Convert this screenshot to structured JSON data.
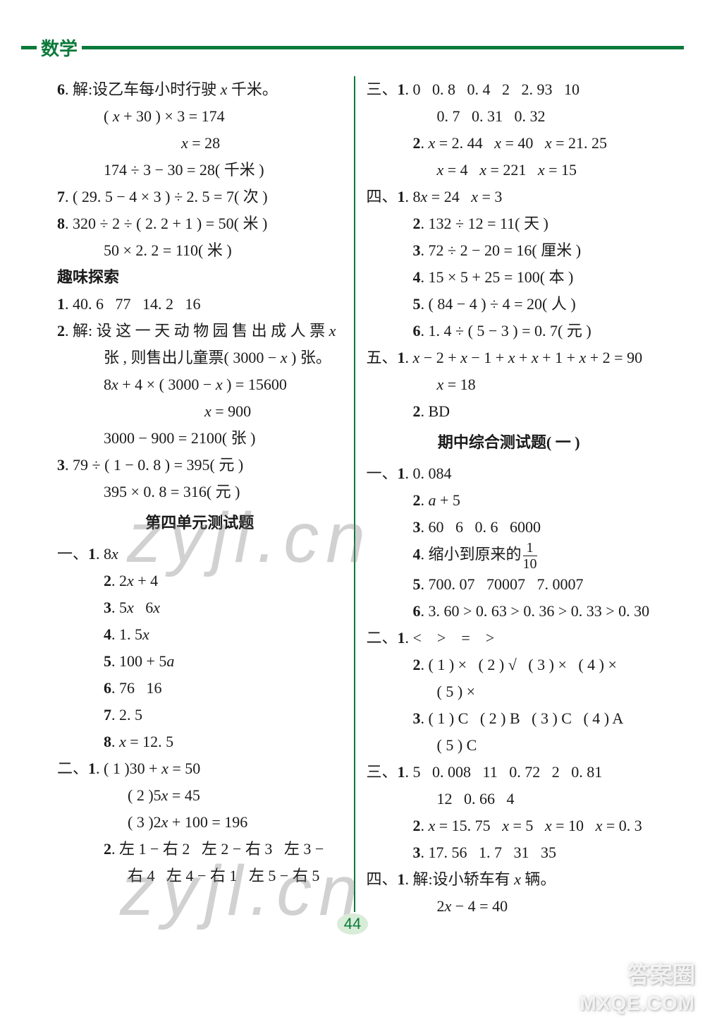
{
  "header": {
    "title": "数学"
  },
  "page_number": "44",
  "watermarks": {
    "w1": "zyjl.cn",
    "w2": "zyjl.cn"
  },
  "logos": {
    "daq": "答案圈",
    "mxqe": "MXQE.COM"
  },
  "left_lines": [
    {
      "cls": "",
      "html": "<b>6</b>. 解:设乙车每小时行驶 <span class='italic'>x</span> 千米。"
    },
    {
      "cls": "indent2",
      "html": "( <span class='italic'>x</span> + 30 ) × 3 = 174"
    },
    {
      "cls": "indent5",
      "html": "<span class='italic'>x</span> = 28"
    },
    {
      "cls": "indent2",
      "html": "174 ÷ 3 − 30 = 28( 千米 )"
    },
    {
      "cls": "",
      "html": "<b>7</b>. ( 29. 5 − 4 × 3 ) ÷ 2. 5 = 7( 次 )"
    },
    {
      "cls": "",
      "html": "<b>8</b>. 320 ÷ 2 ÷ ( 2. 2 + 1 ) = 50( 米 )"
    },
    {
      "cls": "indent2",
      "html": "50 × 2. 2 = 110( 米 )"
    },
    {
      "cls": "bold",
      "html": "趣味探索"
    },
    {
      "cls": "",
      "html": "<b>1</b>. 40. 6&nbsp;&nbsp;&nbsp;77&nbsp;&nbsp;&nbsp;14. 2&nbsp;&nbsp;&nbsp;16"
    },
    {
      "cls": "",
      "html": "<b>2</b>. 解: 设 这 一 天 动 物 园 售 出 成 人 票 <span class='italic'>x</span>"
    },
    {
      "cls": "indent2",
      "html": "张 , 则售出儿童票( 3000 − <span class='italic'>x</span> ) 张。"
    },
    {
      "cls": "indent2",
      "html": "8<span class='italic'>x</span> + 4 × ( 3000 − <span class='italic'>x</span> ) = 15600"
    },
    {
      "cls": "indent5",
      "html": "&nbsp;&nbsp;&nbsp;&nbsp;&nbsp;&nbsp;<span class='italic'>x</span> = 900"
    },
    {
      "cls": "indent2",
      "html": "3000 − 900 = 2100( 张 )"
    },
    {
      "cls": "",
      "html": "<b>3</b>. 79 ÷ ( 1 − 0. 8 ) = 395( 元 )"
    },
    {
      "cls": "indent2",
      "html": "395 × 0. 8 = 316( 元 )"
    },
    {
      "cls": "heading",
      "html": "第四单元测试题"
    },
    {
      "cls": "",
      "html": "一、<b>1</b>. 8<span class='italic'>x</span>"
    },
    {
      "cls": "indent2",
      "html": "<b>2</b>. 2<span class='italic'>x</span> + 4"
    },
    {
      "cls": "indent2",
      "html": "<b>3</b>. 5<span class='italic'>x</span>&nbsp;&nbsp;&nbsp;6<span class='italic'>x</span>"
    },
    {
      "cls": "indent2",
      "html": "<b>4</b>. 1. 5<span class='italic'>x</span>"
    },
    {
      "cls": "indent2",
      "html": "<b>5</b>. 100 + 5<span class='italic'>a</span>"
    },
    {
      "cls": "indent2",
      "html": "<b>6</b>. 76&nbsp;&nbsp;&nbsp;16"
    },
    {
      "cls": "indent2",
      "html": "<b>7</b>. 2. 5"
    },
    {
      "cls": "indent2",
      "html": "<b>8</b>. <span class='italic'>x</span> = 12. 5"
    },
    {
      "cls": "",
      "html": "二、<b>1</b>. ( 1 )30 + <span class='italic'>x</span> = 50"
    },
    {
      "cls": "indent3",
      "html": "( 2 )5<span class='italic'>x</span> = 45"
    },
    {
      "cls": "indent3",
      "html": "( 3 )2<span class='italic'>x</span> + 100 = 196"
    },
    {
      "cls": "indent2",
      "html": "<b>2</b>. 左 1 − 右 2&nbsp;&nbsp;&nbsp;左 2 − 右 3&nbsp;&nbsp;&nbsp;左 3 −"
    },
    {
      "cls": "indent3",
      "html": "右 4&nbsp;&nbsp;&nbsp;左 4 − 右 1&nbsp;&nbsp;&nbsp;左 5 − 右 5"
    }
  ],
  "right_lines": [
    {
      "cls": "",
      "html": "三、<b>1</b>. 0&nbsp;&nbsp;&nbsp;0. 8&nbsp;&nbsp;&nbsp;0. 4&nbsp;&nbsp;&nbsp;2&nbsp;&nbsp;&nbsp;2. 93&nbsp;&nbsp;&nbsp;10"
    },
    {
      "cls": "indent3",
      "html": "0. 7&nbsp;&nbsp;&nbsp;0. 31&nbsp;&nbsp;&nbsp;0. 32"
    },
    {
      "cls": "indent2",
      "html": "<b>2</b>. <span class='italic'>x</span> = 2. 44&nbsp;&nbsp;&nbsp;<span class='italic'>x</span> = 40&nbsp;&nbsp;&nbsp;<span class='italic'>x</span> = 21. 25"
    },
    {
      "cls": "indent3",
      "html": "<span class='italic'>x</span> = 4&nbsp;&nbsp;&nbsp;<span class='italic'>x</span> = 221&nbsp;&nbsp;&nbsp;<span class='italic'>x</span> = 15"
    },
    {
      "cls": "",
      "html": "四、<b>1</b>. 8<span class='italic'>x</span> = 24&nbsp;&nbsp;&nbsp;<span class='italic'>x</span> = 3"
    },
    {
      "cls": "indent2",
      "html": "<b>2</b>. 132 ÷ 12 = 11( 天 )"
    },
    {
      "cls": "indent2",
      "html": "<b>3</b>. 72 ÷ 2 − 20 = 16( 厘米 )"
    },
    {
      "cls": "indent2",
      "html": "<b>4</b>. 15 × 5 + 25 = 100( 本 )"
    },
    {
      "cls": "indent2",
      "html": "<b>5</b>. ( 84 − 4 ) ÷ 4 = 20( 人 )"
    },
    {
      "cls": "indent2",
      "html": "<b>6</b>. 1. 4 ÷ ( 5 − 3 ) = 0. 7( 元 )"
    },
    {
      "cls": "",
      "html": "五、<b>1</b>. <span class='italic'>x</span> − 2 + <span class='italic'>x</span> − 1 + <span class='italic'>x</span> + <span class='italic'>x</span> + 1 + <span class='italic'>x</span> + 2 = 90"
    },
    {
      "cls": "indent3",
      "html": "<span class='italic'>x</span> = 18"
    },
    {
      "cls": "indent2",
      "html": "<b>2</b>. BD"
    },
    {
      "cls": "heading",
      "html": "期中综合测试题( 一 )"
    },
    {
      "cls": "",
      "html": "一、<b>1</b>. 0. 084"
    },
    {
      "cls": "indent2",
      "html": "<b>2</b>. <span class='italic'>a</span> + 5"
    },
    {
      "cls": "indent2",
      "html": "<b>3</b>. 60&nbsp;&nbsp;&nbsp;6&nbsp;&nbsp;&nbsp;0. 6&nbsp;&nbsp;&nbsp;6000"
    },
    {
      "cls": "indent2",
      "html": "<b>4</b>. 缩小到原来的<span class='fraction'><span class='num'>1</span><span class='den'>10</span></span>"
    },
    {
      "cls": "indent2",
      "html": "<b>5</b>. 700. 07&nbsp;&nbsp;&nbsp;70007&nbsp;&nbsp;&nbsp;7. 0007"
    },
    {
      "cls": "indent2",
      "html": "<b>6</b>. 3. 60 &gt; 0. 63 &gt; 0. 36 &gt; 0. 33 &gt; 0. 30"
    },
    {
      "cls": "",
      "html": "二、<b>1</b>. &lt;&nbsp;&nbsp;&nbsp;&nbsp;&gt;&nbsp;&nbsp;&nbsp;&nbsp;=&nbsp;&nbsp;&nbsp;&nbsp;&gt;"
    },
    {
      "cls": "indent2",
      "html": "<b>2</b>. ( 1 ) ×&nbsp;&nbsp;&nbsp;( 2 ) √&nbsp;&nbsp;&nbsp;( 3 ) ×&nbsp;&nbsp;&nbsp;( 4 ) ×"
    },
    {
      "cls": "indent3",
      "html": "( 5 ) ×"
    },
    {
      "cls": "indent2",
      "html": "<b>3</b>. ( 1 ) C&nbsp;&nbsp;&nbsp;( 2 ) B&nbsp;&nbsp;&nbsp;( 3 ) C&nbsp;&nbsp;&nbsp;( 4 ) A"
    },
    {
      "cls": "indent3",
      "html": "( 5 ) C"
    },
    {
      "cls": "",
      "html": "三、<b>1</b>. 5&nbsp;&nbsp;&nbsp;0. 008&nbsp;&nbsp;&nbsp;11&nbsp;&nbsp;&nbsp;0. 72&nbsp;&nbsp;&nbsp;2&nbsp;&nbsp;&nbsp;0. 81"
    },
    {
      "cls": "indent3",
      "html": "12&nbsp;&nbsp;&nbsp;0. 66&nbsp;&nbsp;&nbsp;4"
    },
    {
      "cls": "indent2",
      "html": "<b>2</b>. <span class='italic'>x</span> = 15. 75&nbsp;&nbsp;&nbsp;<span class='italic'>x</span> = 5&nbsp;&nbsp;&nbsp;<span class='italic'>x</span> = 10&nbsp;&nbsp;&nbsp;<span class='italic'>x</span> = 0. 3"
    },
    {
      "cls": "indent2",
      "html": "<b>3</b>. 17. 56&nbsp;&nbsp;&nbsp;1. 7&nbsp;&nbsp;&nbsp;31&nbsp;&nbsp;&nbsp;35"
    },
    {
      "cls": "",
      "html": "四、<b>1</b>. 解:设小轿车有 <span class='italic'>x</span> 辆。"
    },
    {
      "cls": "indent3",
      "html": "2<span class='italic'>x</span> − 4 = 40"
    }
  ]
}
